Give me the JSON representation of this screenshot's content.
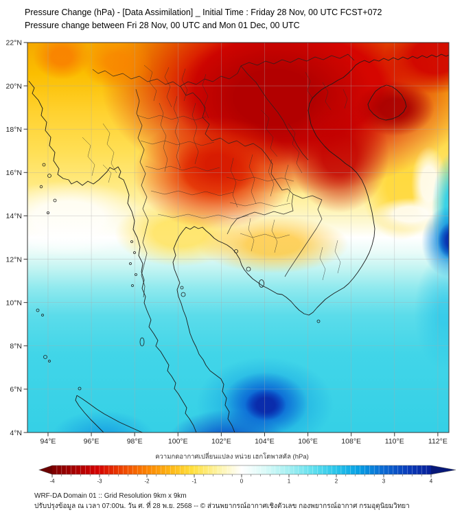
{
  "header": {
    "title_line1": "Pressure Change (hPa) - [Data Assimilation] _ Initial Time : Friday 28 Nov, 00 UTC FCST+072",
    "title_line2": "Pressure change between Fri 28 Nov, 00 UTC and Mon 01 Dec, 00 UTC"
  },
  "map": {
    "lat_ticks": [
      {
        "v": 22,
        "label": "22°N"
      },
      {
        "v": 20,
        "label": "20°N"
      },
      {
        "v": 18,
        "label": "18°N"
      },
      {
        "v": 16,
        "label": "16°N"
      },
      {
        "v": 14,
        "label": "14°N"
      },
      {
        "v": 12,
        "label": "12°N"
      },
      {
        "v": 10,
        "label": "10°N"
      },
      {
        "v": 8,
        "label": "8°N"
      },
      {
        "v": 6,
        "label": "6°N"
      },
      {
        "v": 4,
        "label": "4°N"
      }
    ],
    "lon_ticks": [
      {
        "v": 94,
        "label": "94°E"
      },
      {
        "v": 96,
        "label": "96°E"
      },
      {
        "v": 98,
        "label": "98°E"
      },
      {
        "v": 100,
        "label": "100°E"
      },
      {
        "v": 102,
        "label": "102°E"
      },
      {
        "v": 104,
        "label": "104°E"
      },
      {
        "v": 106,
        "label": "106°E"
      },
      {
        "v": 108,
        "label": "108°E"
      },
      {
        "v": 110,
        "label": "110°E"
      },
      {
        "v": 112,
        "label": "112°E"
      }
    ]
  },
  "colorbar": {
    "label": "ความกดอากาศเปลี่ยนแปลง หน่วย เฮกโตพาสคัล (hPa)",
    "range": [
      -4,
      4
    ],
    "minor_step": 0.2,
    "segments": 80,
    "ticks": [
      {
        "v": -4,
        "label": "-4"
      },
      {
        "v": -3,
        "label": "-3"
      },
      {
        "v": -2,
        "label": "-2"
      },
      {
        "v": -1,
        "label": "-1"
      },
      {
        "v": 0,
        "label": "0"
      },
      {
        "v": 1,
        "label": "1"
      },
      {
        "v": 2,
        "label": "2"
      },
      {
        "v": 3,
        "label": "3"
      },
      {
        "v": 4,
        "label": "4"
      }
    ],
    "colors": {
      "neg_extreme": "#7c0000",
      "zero": "#ffffff",
      "pos_extreme": "#081f98"
    }
  },
  "footer": {
    "line1": "WRF-DA Domain 01 :: Grid Resolution 9km x 9km",
    "line2": "ปรับปรุงข้อมูล ณ เวลา 07:00น. วัน ศ. ที่ 28 พ.ย. 2568 -- © ส่วนพยากรณ์อากาศเชิงตัวเลข กองพยากรณ์อากาศ กรมอุตุนิยมวิทยา"
  },
  "chart_data": {
    "type": "heatmap",
    "title": "Pressure Change (hPa) - [Data Assimilation] _ Initial Time : Friday 28 Nov, 00 UTC FCST+072",
    "subtitle": "Pressure change between Fri 28 Nov, 00 UTC and Mon 01 Dec, 00 UTC",
    "units": "hPa",
    "colorbar_label": "ความกดอากาศเปลี่ยนแปลง หน่วย เฮกโตพาสคัล (hPa)",
    "colorbar_range_hPa": [
      -4,
      4
    ],
    "x_axis": {
      "label_suffix": "°E",
      "range_lon": [
        93.05,
        112.45
      ],
      "ticks": [
        94,
        96,
        98,
        100,
        102,
        104,
        106,
        108,
        110,
        112
      ]
    },
    "y_axis": {
      "label_suffix": "°N",
      "range_lat": [
        4,
        22
      ],
      "ticks": [
        22,
        20,
        18,
        16,
        14,
        12,
        10,
        8,
        6,
        4
      ]
    },
    "grid": "2-degree graticule, light gray",
    "grid_lon": [
      94,
      96,
      98,
      100,
      102,
      104,
      106,
      108,
      110,
      112
    ],
    "grid_lat": [
      22,
      20,
      18,
      16,
      14,
      12,
      10,
      8,
      6,
      4
    ],
    "values_hPa_rows_lat22_to_lat4": [
      [
        -2.2,
        -1.8,
        -2.5,
        -3.5,
        -3.8,
        -3.8,
        -3.5,
        -3.5,
        -3.6,
        -3.2
      ],
      [
        -1.6,
        -1.6,
        -2.0,
        -3.0,
        -3.6,
        -3.9,
        -3.7,
        -3.4,
        -3.3,
        -2.8
      ],
      [
        -1.3,
        -1.3,
        -1.6,
        -2.2,
        -2.8,
        -3.3,
        -3.8,
        -3.2,
        -2.2,
        -1.5
      ],
      [
        -1.0,
        -1.0,
        -1.3,
        -2.4,
        -2.9,
        -2.6,
        -3.0,
        -3.6,
        -1.6,
        -0.8
      ],
      [
        -0.3,
        -0.6,
        -1.0,
        -1.5,
        -2.0,
        -1.9,
        -1.7,
        -1.4,
        -0.5,
        0.3
      ],
      [
        0.4,
        0.4,
        0.2,
        -0.3,
        -0.5,
        -0.4,
        0.2,
        0.6,
        0.9,
        2.8
      ],
      [
        0.7,
        0.7,
        0.6,
        0.5,
        0.6,
        0.7,
        0.6,
        0.9,
        1.0,
        1.2
      ],
      [
        0.9,
        0.9,
        0.8,
        0.8,
        0.9,
        1.0,
        1.0,
        1.0,
        1.1,
        1.1
      ],
      [
        1.0,
        1.0,
        1.0,
        1.2,
        1.6,
        2.8,
        1.4,
        1.1,
        1.0,
        1.0
      ],
      [
        1.1,
        1.4,
        1.2,
        1.6,
        2.6,
        3.2,
        1.6,
        1.2,
        1.0,
        1.0
      ]
    ],
    "features": [
      {
        "name": "strongest pressure fall (dark red)",
        "value_hPa": -3.9,
        "location": "N Vietnam / N Laos, ~19-21°N 103-106°E, and Hainan ~19°N 110°E"
      },
      {
        "name": "secondary fall core",
        "value_hPa": -3.6,
        "location": "central Vietnam coast ~16.5°N 107.5°E"
      },
      {
        "name": "central Thailand fall",
        "value_hPa": -2.8,
        "location": "~15.8°N 101.5°E"
      },
      {
        "name": "strongest pressure rise (dark blue)",
        "value_hPa": 3.2,
        "location": "~5.3°N 104°E south of Gulf of Thailand"
      },
      {
        "name": "pressure rise blob at east edge",
        "value_hPa": 2.9,
        "location": "~12.7°N 112.3°E South China Sea"
      },
      {
        "name": "zero-change band (white)",
        "value_hPa": 0,
        "location": "roughly 11-14.5°N, dipping south over Indochina"
      }
    ]
  }
}
